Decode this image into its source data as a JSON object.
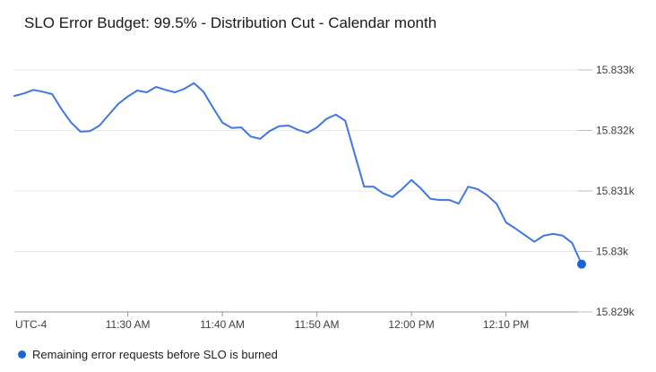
{
  "title": "SLO Error Budget: 99.5% - Distribution Cut - Calendar month",
  "legend": {
    "label": "Remaining error requests before SLO is burned"
  },
  "colors": {
    "line": "#4078e0",
    "endpoint": "#1a67d2",
    "legend_dot": "#1a67d2",
    "gridline": "#e8e8e8",
    "axis": "#8f9499",
    "tick_stub": "#bdbdbd",
    "tick_label": "#3c4043",
    "title_text": "#1a1a1a"
  },
  "x_axis": {
    "utc_label": "UTC-4",
    "ticks": [
      {
        "label": "11:30 AM",
        "minute": 12
      },
      {
        "label": "11:40 AM",
        "minute": 22
      },
      {
        "label": "11:50 AM",
        "minute": 32
      },
      {
        "label": "12:00 PM",
        "minute": 42
      },
      {
        "label": "12:10 PM",
        "minute": 52
      }
    ]
  },
  "y_axis": {
    "ticks": [
      {
        "label": "15.833k",
        "value": 15833
      },
      {
        "label": "15.832k",
        "value": 15832
      },
      {
        "label": "15.831k",
        "value": 15831
      },
      {
        "label": "15.83k",
        "value": 15830
      },
      {
        "label": "15.829k",
        "value": 15829
      }
    ]
  },
  "chart_data": {
    "type": "line",
    "title": "SLO Error Budget: 99.5% - Distribution Cut - Calendar month",
    "series_name": "Remaining error requests before SLO is burned",
    "unit": "requests",
    "timezone": "UTC-4",
    "interval_minutes": 1,
    "ylim": [
      15829,
      15833.5
    ],
    "grid": true,
    "legend_position": "bottom-left",
    "x": [
      "11:18 AM",
      "11:19 AM",
      "11:20 AM",
      "11:21 AM",
      "11:22 AM",
      "11:23 AM",
      "11:24 AM",
      "11:25 AM",
      "11:26 AM",
      "11:27 AM",
      "11:28 AM",
      "11:29 AM",
      "11:30 AM",
      "11:31 AM",
      "11:32 AM",
      "11:33 AM",
      "11:34 AM",
      "11:35 AM",
      "11:36 AM",
      "11:37 AM",
      "11:38 AM",
      "11:39 AM",
      "11:40 AM",
      "11:41 AM",
      "11:42 AM",
      "11:43 AM",
      "11:44 AM",
      "11:45 AM",
      "11:46 AM",
      "11:47 AM",
      "11:48 AM",
      "11:49 AM",
      "11:50 AM",
      "11:51 AM",
      "11:52 AM",
      "11:53 AM",
      "11:54 AM",
      "11:55 AM",
      "11:56 AM",
      "11:57 AM",
      "11:58 AM",
      "11:59 AM",
      "12:00 PM",
      "12:01 PM",
      "12:02 PM",
      "12:03 PM",
      "12:04 PM",
      "12:05 PM",
      "12:06 PM",
      "12:07 PM",
      "12:08 PM",
      "12:09 PM",
      "12:10 PM",
      "12:11 PM",
      "12:12 PM",
      "12:13 PM",
      "12:14 PM",
      "12:15 PM",
      "12:16 PM",
      "12:17 PM",
      "12:18 PM"
    ],
    "values": [
      15832.57,
      15832.61,
      15832.67,
      15832.64,
      15832.6,
      15832.35,
      15832.13,
      15831.98,
      15831.99,
      15832.08,
      15832.26,
      15832.44,
      15832.56,
      15832.66,
      15832.63,
      15832.72,
      15832.67,
      15832.63,
      15832.69,
      15832.78,
      15832.64,
      15832.38,
      15832.13,
      15832.04,
      15832.05,
      15831.9,
      15831.86,
      15831.99,
      15832.07,
      15832.08,
      15832.01,
      15831.96,
      15832.05,
      15832.19,
      15832.26,
      15832.16,
      15831.61,
      15831.07,
      15831.07,
      15830.96,
      15830.9,
      15831.03,
      15831.18,
      15831.04,
      15830.87,
      15830.85,
      15830.85,
      15830.79,
      15831.07,
      15831.03,
      15830.93,
      15830.79,
      15830.48,
      15830.38,
      15830.27,
      15830.16,
      15830.26,
      15830.29,
      15830.26,
      15830.14,
      15829.79
    ]
  }
}
